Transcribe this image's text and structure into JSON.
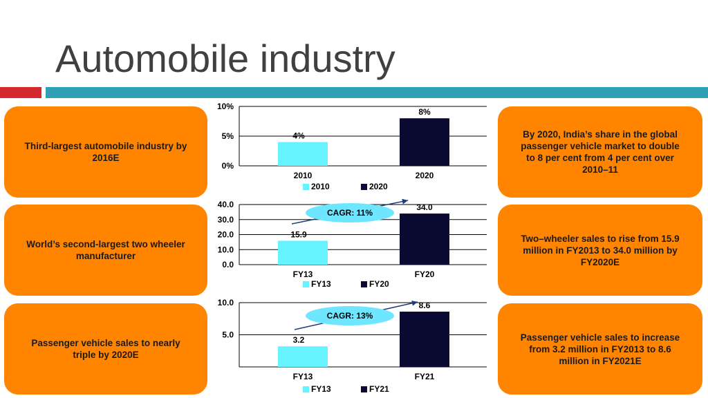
{
  "title": "Automobile industry",
  "colors": {
    "accent_red": "#d2282e",
    "accent_teal": "#2e9fb5",
    "box": "#ff8500",
    "series_a": "#66f3ff",
    "series_b": "#0a0a32",
    "bubble": "#6ee6ff"
  },
  "left_boxes": [
    "Third-largest automobile industry by 2016E",
    "World’s second-largest two wheeler manufacturer",
    "Passenger vehicle sales to nearly triple by 2020E"
  ],
  "right_boxes": [
    "By 2020, India’s share in the global passenger vehicle market to double to 8 per cent from 4 per cent over 2010–11",
    "Two–wheeler sales to rise from 15.9 million in FY2013 to 34.0 million by FY2020E",
    "Passenger vehicle sales to increase from 3.2 million in FY2013 to 8.6 million in FY2021E"
  ],
  "chart_data": [
    {
      "type": "bar",
      "categories": [
        "2010",
        "2020"
      ],
      "values": [
        4,
        8
      ],
      "value_labels": [
        "4%",
        "8%"
      ],
      "yticks": [
        "0%",
        "5%",
        "10%"
      ],
      "ytick_values": [
        0,
        5,
        10
      ],
      "ylim": [
        0,
        10
      ],
      "legend": [
        "2010",
        "2020"
      ],
      "legend_position": "bottom",
      "grid": true
    },
    {
      "type": "bar",
      "categories": [
        "FY13",
        "FY20"
      ],
      "values": [
        15.9,
        34.0
      ],
      "value_labels": [
        "15.9",
        "34.0"
      ],
      "yticks": [
        "0.0",
        "10.0",
        "20.0",
        "30.0",
        "40.0"
      ],
      "ytick_values": [
        0,
        10,
        20,
        30,
        40
      ],
      "ylim": [
        0,
        40
      ],
      "annotation": "CAGR: 11%",
      "legend": [
        "FY13",
        "FY20"
      ],
      "legend_position": "bottom",
      "grid": true
    },
    {
      "type": "bar",
      "categories": [
        "FY13",
        "FY21"
      ],
      "values": [
        3.2,
        8.6
      ],
      "value_labels": [
        "3.2",
        "8.6"
      ],
      "yticks": [
        "5.0",
        "10.0"
      ],
      "ytick_values": [
        5,
        10
      ],
      "ylim": [
        0,
        10
      ],
      "annotation": "CAGR: 13%",
      "legend": [
        "FY13",
        "FY21"
      ],
      "legend_position": "bottom",
      "grid": true
    }
  ]
}
